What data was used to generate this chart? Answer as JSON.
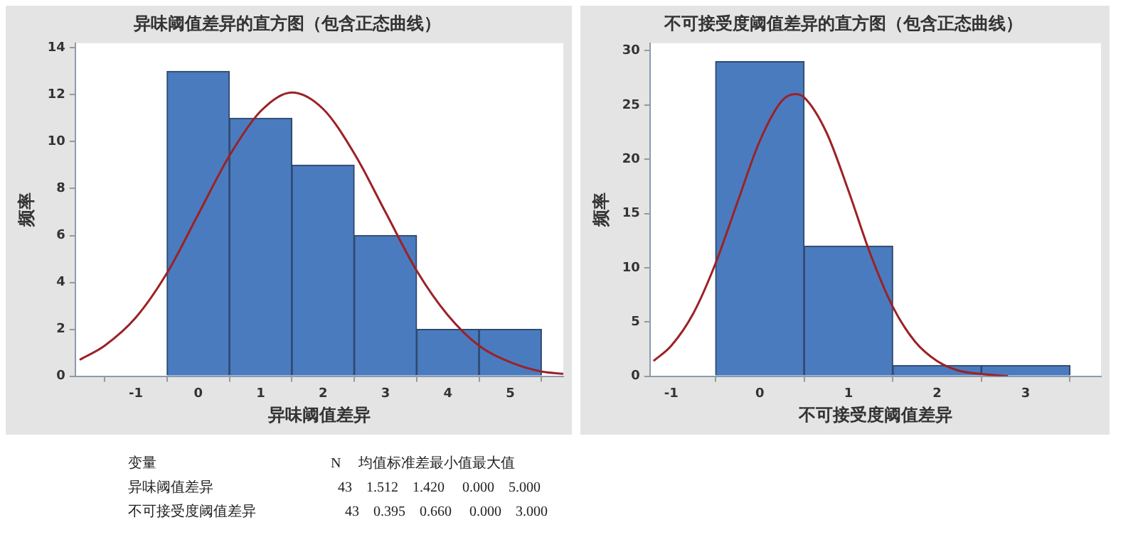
{
  "chart_data": [
    {
      "type": "histogram",
      "title": "异味阈值差异的直方图（包含正态曲线）",
      "xlabel": "异味阈值差异",
      "ylabel": "频率",
      "bins": [
        -0.5,
        0.5,
        1.5,
        2.5,
        3.5,
        4.5,
        5.5
      ],
      "values": [
        13,
        11,
        9,
        6,
        2,
        2
      ],
      "color": "#4a7bbf",
      "xlim": [
        -1.97,
        5.85
      ],
      "ylim": [
        0,
        14.2
      ],
      "xticks": [
        -1,
        0,
        1,
        2,
        3,
        4,
        5
      ],
      "yticks": [
        0,
        2,
        4,
        6,
        8,
        10,
        12,
        14
      ],
      "grid": false,
      "legend": false,
      "series": [
        {
          "type": "line",
          "color": "#9b2226",
          "x": [
            -1.9,
            -1.5,
            -1,
            -0.5,
            0,
            0.5,
            1,
            1.5,
            2,
            2.5,
            3,
            3.5,
            4,
            4.5,
            5,
            5.5,
            5.85
          ],
          "values": [
            0.7,
            1.3,
            2.5,
            4.4,
            6.9,
            9.4,
            11.3,
            12.1,
            11.4,
            9.5,
            7.0,
            4.5,
            2.6,
            1.3,
            0.6,
            0.2,
            0.1
          ]
        }
      ]
    },
    {
      "type": "histogram",
      "title": "不可接受度阈值差异的直方图（包含正态曲线）",
      "xlabel": "不可接受度阈值差异",
      "ylabel": "频率",
      "bins": [
        -0.5,
        0.5,
        1.5,
        2.5,
        3.5
      ],
      "values": [
        29,
        12,
        1,
        1
      ],
      "color": "#4a7bbf",
      "xlim": [
        -1.24,
        3.85
      ],
      "ylim": [
        0,
        30.7
      ],
      "xticks": [
        -1,
        0,
        1,
        2,
        3
      ],
      "yticks": [
        0,
        5,
        10,
        15,
        20,
        25,
        30
      ],
      "grid": false,
      "legend": false,
      "series": [
        {
          "type": "line",
          "color": "#9b2226",
          "x": [
            -1.2,
            -1,
            -0.75,
            -0.5,
            -0.25,
            0,
            0.25,
            0.4,
            0.5,
            0.75,
            1,
            1.25,
            1.5,
            1.75,
            2,
            2.25,
            2.5,
            2.8
          ],
          "values": [
            1.4,
            2.8,
            5.8,
            10.4,
            16.1,
            21.7,
            25.4,
            26.0,
            25.7,
            22.5,
            17.1,
            11.2,
            6.4,
            3.2,
            1.4,
            0.5,
            0.2,
            0.0
          ]
        }
      ]
    },
    {
      "type": "other",
      "annotations": [
        "变量                                                 N     均值标准差最小值最大值",
        "异味阈值差异                                   43    1.512    1.420     0.000    5.000",
        "不可接受度阈值差异                         43    0.395    0.660     0.000    3.000"
      ]
    }
  ]
}
